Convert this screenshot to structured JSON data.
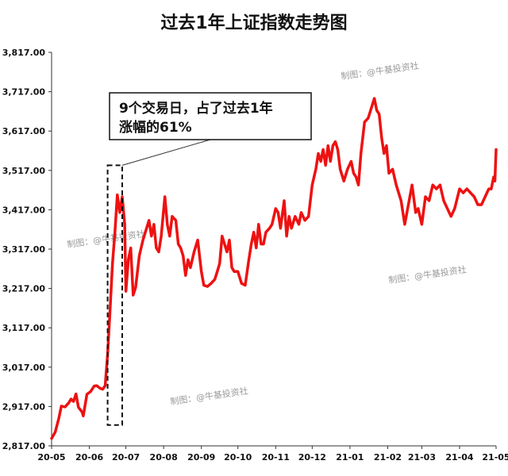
{
  "chart_data": {
    "type": "line",
    "title": "过去1年上证指数走势图",
    "xlabel": "",
    "ylabel": "",
    "ylim": [
      2817.0,
      3817.0
    ],
    "grid": false,
    "legend": "none",
    "y_ticks": [
      "3,817.00",
      "3,717.00",
      "3,617.00",
      "3,517.00",
      "3,417.00",
      "3,317.00",
      "3,217.00",
      "3,117.00",
      "3,017.00",
      "2,917.00",
      "2,817.00"
    ],
    "y_tick_values": [
      3817,
      3717,
      3617,
      3517,
      3417,
      3317,
      3217,
      3117,
      3017,
      2917,
      2817
    ],
    "x_ticks": [
      "20-05",
      "20-06",
      "20-07",
      "20-08",
      "20-09",
      "20-10",
      "20-11",
      "20-12",
      "21-01",
      "21-02",
      "21-03",
      "21-04",
      "21-05"
    ],
    "x_tick_dates": [
      "2020-05-01",
      "2020-06-01",
      "2020-07-01",
      "2020-08-01",
      "2020-09-01",
      "2020-10-01",
      "2020-11-01",
      "2020-12-01",
      "2021-01-01",
      "2021-02-01",
      "2021-03-01",
      "2021-04-01",
      "2021-05-01"
    ],
    "series_color": "#ee1111",
    "series": [
      {
        "points": [
          [
            "2020-05-01",
            2836
          ],
          [
            "2020-05-04",
            2852
          ],
          [
            "2020-05-07",
            2888
          ],
          [
            "2020-05-09",
            2918
          ],
          [
            "2020-05-12",
            2916
          ],
          [
            "2020-05-15",
            2926
          ],
          [
            "2020-05-17",
            2936
          ],
          [
            "2020-05-19",
            2930
          ],
          [
            "2020-05-21",
            2949
          ],
          [
            "2020-05-23",
            2915
          ],
          [
            "2020-05-26",
            2903
          ],
          [
            "2020-05-27",
            2893
          ],
          [
            "2020-05-30",
            2948
          ],
          [
            "2020-06-02",
            2955
          ],
          [
            "2020-06-05",
            2969
          ],
          [
            "2020-06-07",
            2970
          ],
          [
            "2020-06-10",
            2963
          ],
          [
            "2020-06-12",
            2961
          ],
          [
            "2020-06-14",
            2970
          ],
          [
            "2020-06-16",
            3050
          ],
          [
            "2020-06-18",
            3160
          ],
          [
            "2020-06-20",
            3280
          ],
          [
            "2020-06-22",
            3360
          ],
          [
            "2020-06-24",
            3455
          ],
          [
            "2020-06-26",
            3410
          ],
          [
            "2020-06-28",
            3450
          ],
          [
            "2020-06-30",
            3380
          ],
          [
            "2020-07-01",
            3210
          ],
          [
            "2020-07-03",
            3290
          ],
          [
            "2020-07-05",
            3320
          ],
          [
            "2020-07-07",
            3200
          ],
          [
            "2020-07-09",
            3220
          ],
          [
            "2020-07-12",
            3300
          ],
          [
            "2020-07-15",
            3340
          ],
          [
            "2020-07-17",
            3360
          ],
          [
            "2020-07-20",
            3390
          ],
          [
            "2020-07-22",
            3350
          ],
          [
            "2020-07-24",
            3380
          ],
          [
            "2020-07-26",
            3320
          ],
          [
            "2020-07-28",
            3310
          ],
          [
            "2020-07-30",
            3350
          ],
          [
            "2020-08-02",
            3450
          ],
          [
            "2020-08-04",
            3380
          ],
          [
            "2020-08-06",
            3350
          ],
          [
            "2020-08-08",
            3400
          ],
          [
            "2020-08-11",
            3390
          ],
          [
            "2020-08-13",
            3330
          ],
          [
            "2020-08-15",
            3320
          ],
          [
            "2020-08-17",
            3300
          ],
          [
            "2020-08-19",
            3250
          ],
          [
            "2020-08-21",
            3290
          ],
          [
            "2020-08-23",
            3270
          ],
          [
            "2020-08-26",
            3310
          ],
          [
            "2020-08-29",
            3340
          ],
          [
            "2020-09-01",
            3260
          ],
          [
            "2020-09-03",
            3225
          ],
          [
            "2020-09-06",
            3222
          ],
          [
            "2020-09-09",
            3230
          ],
          [
            "2020-09-12",
            3240
          ],
          [
            "2020-09-14",
            3260
          ],
          [
            "2020-09-16",
            3280
          ],
          [
            "2020-09-18",
            3350
          ],
          [
            "2020-09-20",
            3330
          ],
          [
            "2020-09-22",
            3310
          ],
          [
            "2020-09-24",
            3340
          ],
          [
            "2020-09-26",
            3270
          ],
          [
            "2020-09-28",
            3260
          ],
          [
            "2020-10-01",
            3260
          ],
          [
            "2020-10-04",
            3230
          ],
          [
            "2020-10-07",
            3225
          ],
          [
            "2020-10-10",
            3290
          ],
          [
            "2020-10-12",
            3330
          ],
          [
            "2020-10-14",
            3360
          ],
          [
            "2020-10-16",
            3320
          ],
          [
            "2020-10-18",
            3380
          ],
          [
            "2020-10-20",
            3330
          ],
          [
            "2020-10-22",
            3330
          ],
          [
            "2020-10-24",
            3360
          ],
          [
            "2020-10-27",
            3370
          ],
          [
            "2020-10-29",
            3380
          ],
          [
            "2020-11-01",
            3420
          ],
          [
            "2020-11-03",
            3410
          ],
          [
            "2020-11-05",
            3370
          ],
          [
            "2020-11-08",
            3440
          ],
          [
            "2020-11-10",
            3350
          ],
          [
            "2020-11-12",
            3400
          ],
          [
            "2020-11-14",
            3370
          ],
          [
            "2020-11-17",
            3400
          ],
          [
            "2020-11-20",
            3380
          ],
          [
            "2020-11-22",
            3410
          ],
          [
            "2020-11-25",
            3390
          ],
          [
            "2020-11-28",
            3400
          ],
          [
            "2020-12-01",
            3480
          ],
          [
            "2020-12-04",
            3520
          ],
          [
            "2020-12-06",
            3560
          ],
          [
            "2020-12-08",
            3540
          ],
          [
            "2020-12-10",
            3570
          ],
          [
            "2020-12-12",
            3530
          ],
          [
            "2020-12-14",
            3580
          ],
          [
            "2020-12-16",
            3540
          ],
          [
            "2020-12-18",
            3580
          ],
          [
            "2020-12-20",
            3590
          ],
          [
            "2020-12-22",
            3570
          ],
          [
            "2020-12-24",
            3520
          ],
          [
            "2020-12-27",
            3490
          ],
          [
            "2020-12-30",
            3520
          ],
          [
            "2021-01-02",
            3540
          ],
          [
            "2021-01-04",
            3510
          ],
          [
            "2021-01-06",
            3500
          ],
          [
            "2021-01-08",
            3480
          ],
          [
            "2021-01-10",
            3560
          ],
          [
            "2021-01-13",
            3640
          ],
          [
            "2021-01-16",
            3650
          ],
          [
            "2021-01-19",
            3680
          ],
          [
            "2021-01-21",
            3700
          ],
          [
            "2021-01-23",
            3670
          ],
          [
            "2021-01-25",
            3660
          ],
          [
            "2021-01-27",
            3600
          ],
          [
            "2021-01-29",
            3560
          ],
          [
            "2021-01-31",
            3580
          ],
          [
            "2021-02-02",
            3510
          ],
          [
            "2021-02-05",
            3520
          ],
          [
            "2021-02-08",
            3480
          ],
          [
            "2021-02-12",
            3440
          ],
          [
            "2021-02-15",
            3380
          ],
          [
            "2021-02-18",
            3430
          ],
          [
            "2021-02-21",
            3480
          ],
          [
            "2021-02-24",
            3410
          ],
          [
            "2021-02-26",
            3420
          ],
          [
            "2021-03-01",
            3380
          ],
          [
            "2021-03-04",
            3450
          ],
          [
            "2021-03-07",
            3440
          ],
          [
            "2021-03-10",
            3480
          ],
          [
            "2021-03-13",
            3470
          ],
          [
            "2021-03-16",
            3480
          ],
          [
            "2021-03-19",
            3440
          ],
          [
            "2021-03-22",
            3420
          ],
          [
            "2021-03-25",
            3400
          ],
          [
            "2021-03-28",
            3420
          ],
          [
            "2021-04-01",
            3470
          ],
          [
            "2021-04-04",
            3460
          ],
          [
            "2021-04-07",
            3470
          ],
          [
            "2021-04-10",
            3460
          ],
          [
            "2021-04-13",
            3450
          ],
          [
            "2021-04-16",
            3430
          ],
          [
            "2021-04-19",
            3430
          ],
          [
            "2021-04-22",
            3450
          ],
          [
            "2021-04-25",
            3470
          ],
          [
            "2021-04-27",
            3470
          ],
          [
            "2021-04-29",
            3500
          ],
          [
            "2021-04-30",
            3490
          ],
          [
            "2021-05-01",
            3570
          ]
        ]
      }
    ],
    "annotation": {
      "lines": [
        "9个交易日，占了过去1年",
        "涨幅的61%"
      ],
      "highlight_date_range": [
        "2020-06-16",
        "2020-06-28"
      ],
      "highlight_value_range": [
        2870,
        3530
      ]
    },
    "watermark_text": "制图：@牛基投资社"
  }
}
